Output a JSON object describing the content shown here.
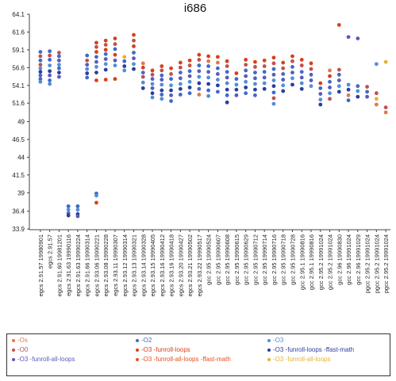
{
  "chart_data": {
    "type": "scatter",
    "title": "i686",
    "xlabel": "",
    "ylabel": "",
    "ylim": [
      33.8,
      64.1
    ],
    "yticks": [
      "64.1",
      "61.6",
      "59.1",
      "56.6",
      "54.1",
      "51.6",
      "49",
      "46.5",
      "44",
      "41.5",
      "39",
      "36.4",
      "33.9"
    ],
    "ytick_values": [
      64.1,
      61.6,
      59.1,
      56.6,
      54.1,
      51.6,
      49.0,
      46.5,
      44.0,
      41.5,
      39.0,
      36.4,
      33.9
    ],
    "grid": false,
    "legend_position": "bottom",
    "categories": [
      "egcs 2.91.57 19980901",
      "egcs 2.91.57",
      "egcs 2.91.60 19981201",
      "egcs 2.91.63 19990116",
      "egcs 2.91.63 19990224",
      "egcs 2.91.66 19990314",
      "egcs 2.93.06 19990221",
      "egcs 2.93.08 19990228",
      "egcs 2.93.11 19990307",
      "egcs 2.93.12 19990314",
      "egcs 2.93.13 19990321",
      "egcs 2.93.14 19990328",
      "egcs 2.93.15 19990405",
      "egcs 2.93.16 19990412",
      "egcs 2.93.16 19990418",
      "egcs 2.93.20 19990427",
      "egcs 2.93.21 19990502",
      "egcs 2.93.22 19990517",
      "gcc 2.95 19990524",
      "gcc 2.95 19990607",
      "gcc 2.95 19990608",
      "gcc 2.95 19990615",
      "gcc 2.95 19990629",
      "gcc 2.95 19990712",
      "gcc 2.95 19990714",
      "gcc 2.95 19990716",
      "gcc 2.95 19990718",
      "gcc 2.95 19990728",
      "gcc 2.95.1 19990816",
      "gcc 2.95.1 19990816",
      "gcc 2.95.2 19991024",
      "gcc 2.95.2 19991024",
      "gcc 2.96 19990830",
      "gcc 2.96 19991024",
      "gcc 2.96 19991029",
      "pgcc 2.95.2 19991024",
      "pgcc 2.95.2 19991024",
      "pgcc 2.95.2 19991024"
    ],
    "series": [
      {
        "name": "-Os",
        "color": "#e07a4a"
      },
      {
        "name": "-O2",
        "color": "#4169c8"
      },
      {
        "name": "-O3",
        "color": "#4f8fd8"
      },
      {
        "name": "-O0",
        "color": "#c0504d"
      },
      {
        "name": "-O3 -funroll-loops",
        "color": "#d8401a"
      },
      {
        "name": "-O3 -funroll-loops -ffast-math",
        "color": "#2a3f9a"
      },
      {
        "name": "-O3 -funroll-all-loops",
        "color": "#5a5ab8"
      },
      {
        "name": "-O3 -funroll-all-loops -ffast-math",
        "color": "#e85020"
      },
      {
        "name": "-O3 -funroll-all-loops",
        "color": "#e8b030"
      }
    ],
    "points": [
      [
        0,
        58.8,
        1
      ],
      [
        0,
        58.2,
        3
      ],
      [
        0,
        57.6,
        1
      ],
      [
        0,
        57.0,
        3
      ],
      [
        0,
        56.5,
        2
      ],
      [
        0,
        56.0,
        5
      ],
      [
        0,
        55.5,
        1
      ],
      [
        0,
        55.0,
        6
      ],
      [
        0,
        54.6,
        2
      ],
      [
        1,
        58.9,
        1
      ],
      [
        1,
        58.3,
        3
      ],
      [
        1,
        57.7,
        1
      ],
      [
        1,
        56.9,
        2
      ],
      [
        1,
        56.1,
        5
      ],
      [
        1,
        55.5,
        6
      ],
      [
        1,
        54.8,
        1
      ],
      [
        1,
        54.3,
        2
      ],
      [
        2,
        58.7,
        3
      ],
      [
        2,
        58.2,
        1
      ],
      [
        2,
        57.6,
        6
      ],
      [
        2,
        57.0,
        2
      ],
      [
        2,
        56.5,
        1
      ],
      [
        2,
        55.9,
        5
      ],
      [
        2,
        55.3,
        6
      ],
      [
        3,
        37.1,
        1
      ],
      [
        3,
        36.6,
        2
      ],
      [
        3,
        36.1,
        6
      ],
      [
        3,
        35.8,
        5
      ],
      [
        4,
        37.1,
        1
      ],
      [
        4,
        36.6,
        2
      ],
      [
        4,
        36.0,
        5
      ],
      [
        4,
        35.7,
        6
      ],
      [
        5,
        58.3,
        1
      ],
      [
        5,
        57.6,
        3
      ],
      [
        5,
        57.0,
        6
      ],
      [
        5,
        56.4,
        2
      ],
      [
        5,
        55.8,
        5
      ],
      [
        5,
        55.2,
        1
      ],
      [
        6,
        60.1,
        4
      ],
      [
        6,
        59.5,
        3
      ],
      [
        6,
        58.8,
        4
      ],
      [
        6,
        58.1,
        1
      ],
      [
        6,
        57.4,
        6
      ],
      [
        6,
        56.7,
        2
      ],
      [
        6,
        55.9,
        5
      ],
      [
        6,
        54.8,
        4
      ],
      [
        6,
        38.9,
        1
      ],
      [
        6,
        38.6,
        2
      ],
      [
        6,
        37.6,
        4
      ],
      [
        7,
        60.4,
        4
      ],
      [
        7,
        59.8,
        3
      ],
      [
        7,
        59.1,
        4
      ],
      [
        7,
        58.5,
        1
      ],
      [
        7,
        57.8,
        6
      ],
      [
        7,
        57.1,
        2
      ],
      [
        7,
        56.3,
        5
      ],
      [
        7,
        54.9,
        4
      ],
      [
        8,
        60.7,
        4
      ],
      [
        8,
        59.9,
        3
      ],
      [
        8,
        59.2,
        1
      ],
      [
        8,
        58.4,
        4
      ],
      [
        8,
        57.6,
        6
      ],
      [
        8,
        56.9,
        2
      ],
      [
        8,
        55.0,
        4
      ],
      [
        9,
        58.1,
        8
      ],
      [
        9,
        57.5,
        1
      ],
      [
        9,
        56.8,
        5
      ],
      [
        9,
        56.2,
        2
      ],
      [
        10,
        61.2,
        4
      ],
      [
        10,
        60.4,
        3
      ],
      [
        10,
        59.6,
        4
      ],
      [
        10,
        58.7,
        1
      ],
      [
        10,
        57.9,
        6
      ],
      [
        10,
        57.1,
        2
      ],
      [
        10,
        56.4,
        5
      ],
      [
        11,
        57.2,
        0
      ],
      [
        11,
        56.6,
        4
      ],
      [
        11,
        55.9,
        1
      ],
      [
        11,
        55.3,
        3
      ],
      [
        11,
        54.5,
        2
      ],
      [
        11,
        53.7,
        5
      ],
      [
        12,
        56.2,
        4
      ],
      [
        12,
        55.6,
        3
      ],
      [
        12,
        55.0,
        1
      ],
      [
        12,
        54.3,
        2
      ],
      [
        12,
        53.7,
        6
      ],
      [
        12,
        53.0,
        5
      ],
      [
        12,
        52.4,
        2
      ],
      [
        13,
        56.8,
        4
      ],
      [
        13,
        56.2,
        3
      ],
      [
        13,
        55.5,
        1
      ],
      [
        13,
        54.9,
        6
      ],
      [
        13,
        54.2,
        2
      ],
      [
        13,
        53.4,
        5
      ],
      [
        13,
        52.8,
        1
      ],
      [
        13,
        52.2,
        2
      ],
      [
        14,
        56.5,
        4
      ],
      [
        14,
        55.7,
        3
      ],
      [
        14,
        55.0,
        1
      ],
      [
        14,
        54.1,
        2
      ],
      [
        14,
        53.4,
        5
      ],
      [
        14,
        52.7,
        6
      ],
      [
        14,
        51.9,
        1
      ],
      [
        15,
        57.3,
        4
      ],
      [
        15,
        56.6,
        3
      ],
      [
        15,
        55.9,
        1
      ],
      [
        15,
        55.1,
        6
      ],
      [
        15,
        54.3,
        2
      ],
      [
        15,
        53.6,
        5
      ],
      [
        15,
        52.8,
        1
      ],
      [
        16,
        57.6,
        4
      ],
      [
        16,
        56.9,
        3
      ],
      [
        16,
        56.1,
        1
      ],
      [
        16,
        55.4,
        6
      ],
      [
        16,
        54.6,
        2
      ],
      [
        16,
        53.8,
        5
      ],
      [
        16,
        53.0,
        1
      ],
      [
        17,
        58.4,
        4
      ],
      [
        17,
        57.7,
        3
      ],
      [
        17,
        56.9,
        1
      ],
      [
        17,
        56.1,
        6
      ],
      [
        17,
        55.3,
        2
      ],
      [
        17,
        54.4,
        5
      ],
      [
        17,
        53.6,
        1
      ],
      [
        17,
        52.8,
        0
      ],
      [
        18,
        58.2,
        4
      ],
      [
        18,
        57.5,
        0
      ],
      [
        18,
        56.8,
        1
      ],
      [
        18,
        56.0,
        6
      ],
      [
        18,
        55.2,
        2
      ],
      [
        18,
        54.3,
        5
      ],
      [
        18,
        53.4,
        1
      ],
      [
        18,
        52.6,
        2
      ],
      [
        19,
        58.1,
        4
      ],
      [
        19,
        57.3,
        0
      ],
      [
        19,
        56.5,
        1
      ],
      [
        19,
        55.7,
        6
      ],
      [
        19,
        54.9,
        2
      ],
      [
        19,
        54.1,
        5
      ],
      [
        19,
        53.2,
        1
      ],
      [
        20,
        57.5,
        4
      ],
      [
        20,
        56.8,
        3
      ],
      [
        20,
        56.0,
        1
      ],
      [
        20,
        55.2,
        6
      ],
      [
        20,
        54.4,
        2
      ],
      [
        20,
        53.5,
        5
      ],
      [
        20,
        52.7,
        1
      ],
      [
        20,
        51.7,
        5
      ],
      [
        21,
        55.8,
        4
      ],
      [
        21,
        55.0,
        1
      ],
      [
        21,
        54.2,
        2
      ],
      [
        21,
        53.5,
        5
      ],
      [
        21,
        52.7,
        6
      ],
      [
        22,
        57.7,
        4
      ],
      [
        22,
        57.0,
        3
      ],
      [
        22,
        56.2,
        1
      ],
      [
        22,
        55.4,
        6
      ],
      [
        22,
        54.6,
        2
      ],
      [
        22,
        53.8,
        5
      ],
      [
        22,
        53.0,
        1
      ],
      [
        23,
        57.4,
        4
      ],
      [
        23,
        56.7,
        3
      ],
      [
        23,
        55.9,
        1
      ],
      [
        23,
        55.1,
        6
      ],
      [
        23,
        54.3,
        2
      ],
      [
        23,
        53.5,
        5
      ],
      [
        23,
        52.7,
        1
      ],
      [
        24,
        57.6,
        4
      ],
      [
        24,
        56.8,
        3
      ],
      [
        24,
        56.0,
        1
      ],
      [
        24,
        55.2,
        6
      ],
      [
        24,
        54.4,
        2
      ],
      [
        24,
        53.6,
        5
      ],
      [
        25,
        58.0,
        4
      ],
      [
        25,
        57.2,
        3
      ],
      [
        25,
        56.4,
        1
      ],
      [
        25,
        55.6,
        6
      ],
      [
        25,
        54.8,
        2
      ],
      [
        25,
        54.0,
        5
      ],
      [
        25,
        53.1,
        1
      ],
      [
        25,
        52.3,
        3
      ],
      [
        25,
        51.5,
        2
      ],
      [
        26,
        57.3,
        4
      ],
      [
        26,
        56.5,
        3
      ],
      [
        26,
        55.7,
        1
      ],
      [
        26,
        54.9,
        6
      ],
      [
        26,
        54.1,
        2
      ],
      [
        26,
        53.3,
        5
      ],
      [
        27,
        58.2,
        4
      ],
      [
        27,
        57.5,
        3
      ],
      [
        27,
        56.7,
        1
      ],
      [
        27,
        55.9,
        6
      ],
      [
        27,
        55.1,
        2
      ],
      [
        27,
        54.2,
        5
      ],
      [
        28,
        57.7,
        4
      ],
      [
        28,
        56.9,
        3
      ],
      [
        28,
        56.0,
        1
      ],
      [
        28,
        55.2,
        6
      ],
      [
        28,
        54.4,
        2
      ],
      [
        28,
        53.6,
        5
      ],
      [
        29,
        57.2,
        4
      ],
      [
        29,
        56.4,
        3
      ],
      [
        29,
        55.6,
        1
      ],
      [
        29,
        54.8,
        6
      ],
      [
        29,
        54.0,
        2
      ],
      [
        30,
        54.4,
        4
      ],
      [
        30,
        53.7,
        1
      ],
      [
        30,
        52.9,
        6
      ],
      [
        30,
        52.1,
        2
      ],
      [
        30,
        51.4,
        5
      ],
      [
        31,
        56.2,
        0
      ],
      [
        31,
        55.4,
        4
      ],
      [
        31,
        54.6,
        1
      ],
      [
        31,
        53.8,
        6
      ],
      [
        31,
        53.0,
        2
      ],
      [
        31,
        52.2,
        3
      ],
      [
        32,
        62.6,
        4
      ],
      [
        32,
        56.3,
        3
      ],
      [
        32,
        55.6,
        1
      ],
      [
        32,
        54.8,
        6
      ],
      [
        32,
        54.0,
        2
      ],
      [
        32,
        53.2,
        5
      ],
      [
        33,
        60.9,
        6
      ],
      [
        33,
        54.2,
        2
      ],
      [
        33,
        53.5,
        5
      ],
      [
        33,
        52.7,
        0
      ],
      [
        33,
        52.0,
        1
      ],
      [
        34,
        60.7,
        6
      ],
      [
        34,
        54.0,
        1
      ],
      [
        34,
        53.3,
        2
      ],
      [
        34,
        52.5,
        5
      ],
      [
        35,
        53.9,
        3
      ],
      [
        35,
        53.2,
        1
      ],
      [
        35,
        52.5,
        6
      ],
      [
        36,
        57.1,
        2
      ],
      [
        36,
        53.0,
        3
      ],
      [
        36,
        52.2,
        8
      ],
      [
        36,
        51.4,
        0
      ],
      [
        37,
        57.4,
        8
      ],
      [
        37,
        51.0,
        3
      ],
      [
        37,
        50.3,
        0
      ]
    ]
  },
  "legend": {
    "items": [
      {
        "label": "-Os",
        "color": "#e07a4a"
      },
      {
        "label": "-O2",
        "color": "#4169c8"
      },
      {
        "label": "-O3",
        "color": "#4f8fd8"
      },
      {
        "label": "-O0",
        "color": "#c0504d"
      },
      {
        "label": "-O3 -funroll-loops",
        "color": "#d8401a"
      },
      {
        "label": "-O3 -funroll-loops -ffast-math",
        "color": "#2a3f9a"
      },
      {
        "label": "-O3 -funroll-all-loops",
        "color": "#5a5ab8"
      },
      {
        "label": "-O3 -funroll-all-loops -ffast-math",
        "color": "#e85020"
      },
      {
        "label": "-O3 -funroll-all-loops",
        "color": "#e8b030"
      }
    ]
  }
}
